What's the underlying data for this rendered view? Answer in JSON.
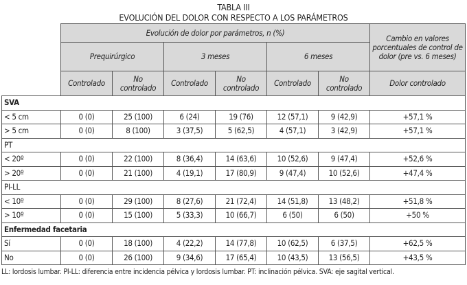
{
  "title": "TABLA III",
  "subtitle": "EVOLUCIÓN DEL DOLOR CON RESPECTO A LOS PARÁMETROS",
  "header": {
    "group": "Evolución de dolor por parámetros, n (%)",
    "change": "Cambio en valores porcentuales de control de dolor (pre vs. 6 meses)",
    "periods": [
      "Prequirúrgico",
      "3 meses",
      "6 meses"
    ],
    "sub": [
      "Controlado",
      "No controlado",
      "Controlado",
      "No controlado",
      "Controlado",
      "No controlado",
      "Dolor controlado"
    ]
  },
  "sections": [
    {
      "name": "SVA",
      "bold": true,
      "rows": [
        {
          "label": "< 5 cm",
          "cells": [
            "0 (0)",
            "25 (100)",
            "6 (24)",
            "19 (76)",
            "12 (57,1)",
            "9 (42,9)",
            "+57,1 %"
          ]
        },
        {
          "label": "> 5 cm",
          "cells": [
            "0 (0)",
            "8 (100)",
            "3 (37,5)",
            "5 (62,5)",
            "4 (57,1)",
            "3 (42,9)",
            "+57,1 %"
          ]
        }
      ]
    },
    {
      "name": "PT",
      "bold": false,
      "rows": [
        {
          "label": "< 20º",
          "cells": [
            "0 (0)",
            "22 (100)",
            "8 (36,4)",
            "14 (63,6)",
            "10 (52,6)",
            "9 (47,4)",
            "+52,6 %"
          ]
        },
        {
          "label": "> 20º",
          "cells": [
            "0 (0)",
            "21 (100)",
            "4 (19,1)",
            "17 (80,9)",
            "9 (47,4)",
            "10 (52,6)",
            "+47,4 %"
          ]
        }
      ]
    },
    {
      "name": "PI-LL",
      "bold": false,
      "rows": [
        {
          "label": "< 10º",
          "cells": [
            "0 (0)",
            "29 (100)",
            "8 (27,6)",
            "21 (72,4)",
            "14 (51,8)",
            "13 (48,2)",
            "+51,8 %"
          ]
        },
        {
          "label": "> 10º",
          "cells": [
            "0 (0)",
            "15 (100)",
            "5 (33,3)",
            "10 (66,7)",
            "6 (50)",
            "6 (50)",
            "+50 %"
          ]
        }
      ]
    },
    {
      "name": "Enfermedad facetaria",
      "bold": true,
      "rows": [
        {
          "label": "Sí",
          "cells": [
            "0 (0)",
            "18 (100)",
            "4 (22,2)",
            "14 (77,8)",
            "10 (62,5)",
            "6 (37,5)",
            "+62,5 %"
          ]
        },
        {
          "label": "No",
          "cells": [
            "0 (0)",
            "26 (100)",
            "9 (34,6)",
            "17 (65,4)",
            "10 (43,5)",
            "13 (56,5)",
            "+43,5 %"
          ]
        }
      ]
    }
  ],
  "footnote": "LL: lordosis lumbar. PI-LL: diferencia entre incidencia pélvica y lordosis lumbar. PT: inclinación pélvica. SVA: eje sagital vertical."
}
